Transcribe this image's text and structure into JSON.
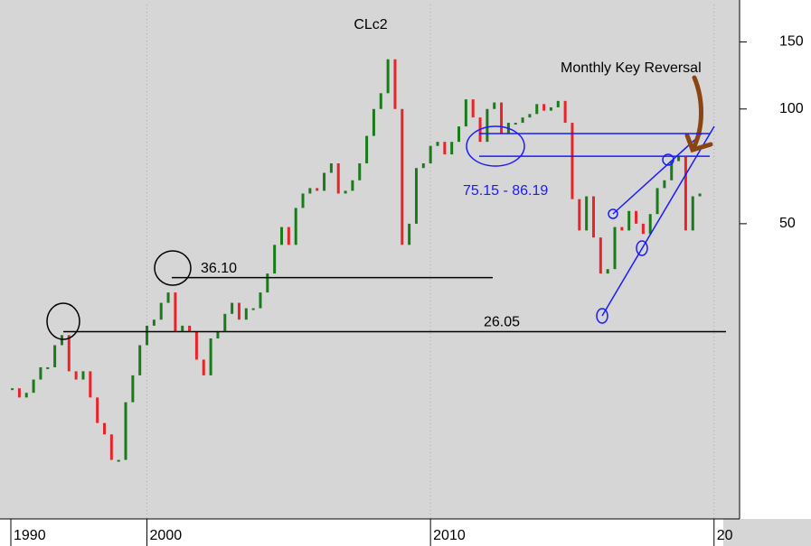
{
  "chart_data": {
    "type": "ohlc",
    "title": "CLc2",
    "log_scale": true,
    "up_color": "#1b7a1b",
    "down_color": "#e8242a",
    "xlim": [
      1995.2,
      2020.9
    ],
    "xticks": [
      {
        "value": 1995.2,
        "label": "1990"
      },
      2000,
      2010,
      {
        "value": 2020,
        "label": "20"
      }
    ],
    "ylim": [
      8.4,
      188
    ],
    "yticks": [
      50,
      100,
      150
    ],
    "x": [
      1995.25,
      1995.5,
      1995.75,
      1996,
      1996.25,
      1996.5,
      1996.75,
      1997,
      1997.25,
      1997.5,
      1997.75,
      1998,
      1998.25,
      1998.5,
      1998.75,
      1999,
      1999.25,
      1999.5,
      1999.75,
      2000,
      2000.25,
      2000.5,
      2000.75,
      2001,
      2001.25,
      2001.5,
      2001.75,
      2002,
      2002.25,
      2002.5,
      2002.75,
      2003,
      2003.25,
      2003.5,
      2003.75,
      2004,
      2004.25,
      2004.5,
      2004.75,
      2005,
      2005.25,
      2005.5,
      2005.75,
      2006,
      2006.25,
      2006.5,
      2006.75,
      2007,
      2007.25,
      2007.5,
      2007.75,
      2008,
      2008.25,
      2008.5,
      2008.75,
      2009,
      2009.25,
      2009.5,
      2009.75,
      2010,
      2010.25,
      2010.5,
      2010.75,
      2011,
      2011.25,
      2011.5,
      2011.75,
      2012,
      2012.25,
      2012.5,
      2012.75,
      2013,
      2013.25,
      2013.5,
      2013.75,
      2014,
      2014.25,
      2014.5,
      2014.75,
      2015,
      2015.25,
      2015.5,
      2015.75,
      2016,
      2016.25,
      2016.5,
      2016.75,
      2017,
      2017.25,
      2017.5,
      2017.75,
      2018,
      2018.25,
      2018.5,
      2018.75,
      2019,
      2019.25,
      2019.5
    ],
    "values": [
      18.5,
      17.5,
      18,
      19.5,
      21,
      21,
      24,
      25.5,
      20.5,
      19.5,
      20.5,
      17.5,
      15,
      14,
      12,
      12,
      17,
      20,
      24,
      27,
      28,
      31,
      33,
      26,
      27,
      26,
      22,
      20,
      25,
      26,
      29,
      31,
      28,
      30,
      30,
      33,
      37,
      44,
      49,
      44,
      55,
      60,
      62,
      61,
      68,
      72,
      60,
      61,
      65,
      72,
      85,
      100,
      110,
      135,
      100,
      44,
      50,
      70,
      72,
      80,
      82,
      76,
      82,
      90,
      106,
      95,
      82,
      100,
      104,
      86,
      92,
      92,
      95,
      97,
      103,
      99,
      101,
      105,
      92,
      58,
      48,
      59,
      46,
      37,
      38,
      49,
      48,
      54,
      50,
      47,
      53,
      62,
      65,
      73,
      75,
      48,
      59,
      60
    ],
    "levels": [
      {
        "label": "36.10",
        "value": 36.1
      },
      {
        "label": "26.05",
        "value": 26.05
      }
    ],
    "zone": {
      "label": "75.15 - 86.19",
      "low": 75.15,
      "high": 86.19
    },
    "annotation": "Monthly Key Reversal"
  }
}
